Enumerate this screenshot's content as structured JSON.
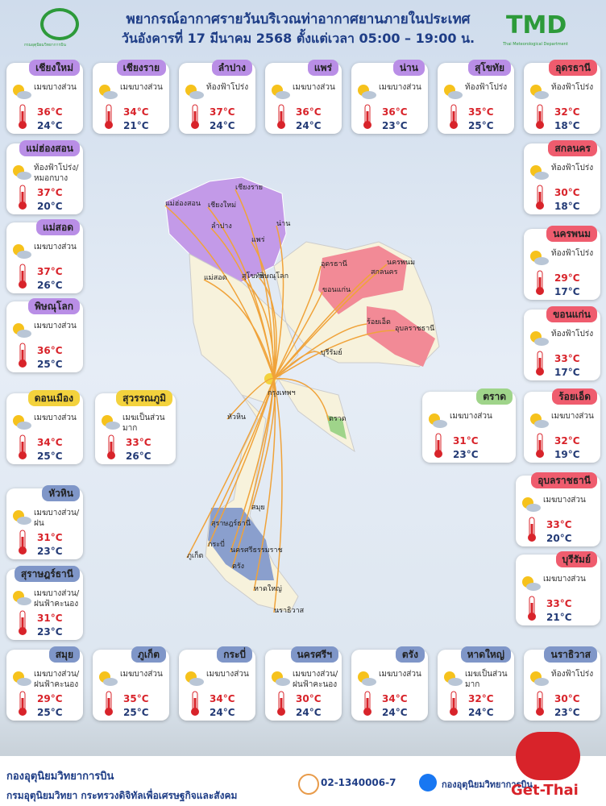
{
  "header": {
    "logo_text": "กรมอุตุนิยมวิทยาการบิน",
    "title": "พยากรณ์อากาศรายวันบริเวณท่าอากาศยานภายในประเทศ",
    "subtitle": "วันอังคารที่ 17 มีนาคม 2568 ตั้งแต่เวลา 05:00 – 19:00 น.",
    "tmd": "TMD",
    "tmd_caption": "Thai Meteorological Department"
  },
  "cards": [
    {
      "name": "เชียงใหม่",
      "condition": "เมฆบางส่วน",
      "high": "36°C",
      "low": "24°C",
      "color": "#b98ee6"
    },
    {
      "name": "เชียงราย",
      "condition": "เมฆบางส่วน",
      "high": "34°C",
      "low": "21°C",
      "color": "#b98ee6"
    },
    {
      "name": "ลำปาง",
      "condition": "ท้องฟ้าโปร่ง",
      "high": "37°C",
      "low": "24°C",
      "color": "#b98ee6"
    },
    {
      "name": "แพร่",
      "condition": "เมฆบางส่วน",
      "high": "36°C",
      "low": "24°C",
      "color": "#b98ee6"
    },
    {
      "name": "น่าน",
      "condition": "เมฆบางส่วน",
      "high": "36°C",
      "low": "23°C",
      "color": "#b98ee6"
    },
    {
      "name": "สุโขทัย",
      "condition": "ท้องฟ้าโปร่ง",
      "high": "35°C",
      "low": "25°C",
      "color": "#b98ee6"
    },
    {
      "name": "อุดรธานี",
      "condition": "ท้องฟ้าโปร่ง",
      "high": "32°C",
      "low": "18°C",
      "color": "#ef5c6e"
    },
    {
      "name": "แม่ฮ่องสอน",
      "condition": "ท้องฟ้าโปร่ง/หมอกบาง",
      "high": "37°C",
      "low": "20°C",
      "color": "#b98ee6"
    },
    {
      "name": "แม่สอด",
      "condition": "เมฆบางส่วน",
      "high": "37°C",
      "low": "26°C",
      "color": "#b98ee6"
    },
    {
      "name": "พิษณุโลก",
      "condition": "เมฆบางส่วน",
      "high": "36°C",
      "low": "25°C",
      "color": "#b98ee6"
    },
    {
      "name": "ดอนเมือง",
      "condition": "เมฆบางส่วน",
      "high": "34°C",
      "low": "25°C",
      "color": "#f3d23d"
    },
    {
      "name": "สุวรรณภูมิ",
      "condition": "เมฆเป็นส่วนมาก",
      "high": "33°C",
      "low": "26°C",
      "color": "#f3d23d"
    },
    {
      "name": "หัวหิน",
      "condition": "เมฆบางส่วน/ฝน",
      "high": "31°C",
      "low": "23°C",
      "color": "#7f96c8"
    },
    {
      "name": "สุราษฎร์ธานี",
      "condition": "เมฆบางส่วน/ฝนฟ้าคะนอง",
      "high": "31°C",
      "low": "23°C",
      "color": "#7f96c8"
    },
    {
      "name": "สกลนคร",
      "condition": "ท้องฟ้าโปร่ง",
      "high": "30°C",
      "low": "18°C",
      "color": "#ef5c6e"
    },
    {
      "name": "นครพนม",
      "condition": "ท้องฟ้าโปร่ง",
      "high": "29°C",
      "low": "17°C",
      "color": "#ef5c6e"
    },
    {
      "name": "ขอนแก่น",
      "condition": "ท้องฟ้าโปร่ง",
      "high": "33°C",
      "low": "17°C",
      "color": "#ef5c6e"
    },
    {
      "name": "ตราด",
      "condition": "เมฆบางส่วน",
      "high": "31°C",
      "low": "23°C",
      "color": "#9fd48a"
    },
    {
      "name": "ร้อยเอ็ด",
      "condition": "เมฆบางส่วน",
      "high": "32°C",
      "low": "19°C",
      "color": "#ef5c6e"
    },
    {
      "name": "อุบลราชธานี",
      "condition": "เมฆบางส่วน",
      "high": "33°C",
      "low": "20°C",
      "color": "#ef5c6e"
    },
    {
      "name": "บุรีรัมย์",
      "condition": "เมฆบางส่วน",
      "high": "33°C",
      "low": "21°C",
      "color": "#ef5c6e"
    },
    {
      "name": "สมุย",
      "condition": "เมฆบางส่วน/ฝนฟ้าคะนอง",
      "high": "29°C",
      "low": "25°C",
      "color": "#7f96c8"
    },
    {
      "name": "ภูเก็ต",
      "condition": "เมฆบางส่วน",
      "high": "35°C",
      "low": "25°C",
      "color": "#7f96c8"
    },
    {
      "name": "กระบี่",
      "condition": "เมฆบางส่วน",
      "high": "34°C",
      "low": "24°C",
      "color": "#7f96c8"
    },
    {
      "name": "นครศรีฯ",
      "condition": "เมฆบางส่วน/ฝนฟ้าคะนอง",
      "high": "30°C",
      "low": "24°C",
      "color": "#7f96c8"
    },
    {
      "name": "ตรัง",
      "condition": "เมฆบางส่วน",
      "high": "34°C",
      "low": "24°C",
      "color": "#7f96c8"
    },
    {
      "name": "หาดใหญ่",
      "condition": "เมฆเป็นส่วนมาก",
      "high": "32°C",
      "low": "24°C",
      "color": "#7f96c8"
    },
    {
      "name": "นราธิวาส",
      "condition": "ท้องฟ้าโปร่ง",
      "high": "30°C",
      "low": "23°C",
      "color": "#7f96c8"
    }
  ],
  "map_labels": [
    "แม่ฮ่องสอน",
    "เชียงราย",
    "เชียงใหม่",
    "น่าน",
    "ลำปาง",
    "แพร่",
    "แม่สอด",
    "สุโขทัย",
    "พิษณุโลก",
    "อุดรธานี",
    "นครพนม",
    "สกลนคร",
    "ขอนแก่น",
    "ร้อยเอ็ด",
    "อุบลราชธานี",
    "บุรีรัมย์",
    "กรุงเทพฯ",
    "ตราด",
    "หัวหิน",
    "สมุย",
    "สุราษฎร์ธานี",
    "ภูเก็ต",
    "กระบี่",
    "นครศรีธรรมราช",
    "ตรัง",
    "หาดใหญ่",
    "นราธิวาส"
  ],
  "footer": {
    "org": "กองอุตุนิยมวิทยาการบิน",
    "dept": "กรมอุตุนิยมวิทยา กระทรวงดิจิทัลเพื่อเศรษฐกิจและสังคม",
    "phone": "02-1340006-7",
    "facebook": "กองอุตุนิยมวิทยาการบิน",
    "brand": "Get-Thai"
  }
}
